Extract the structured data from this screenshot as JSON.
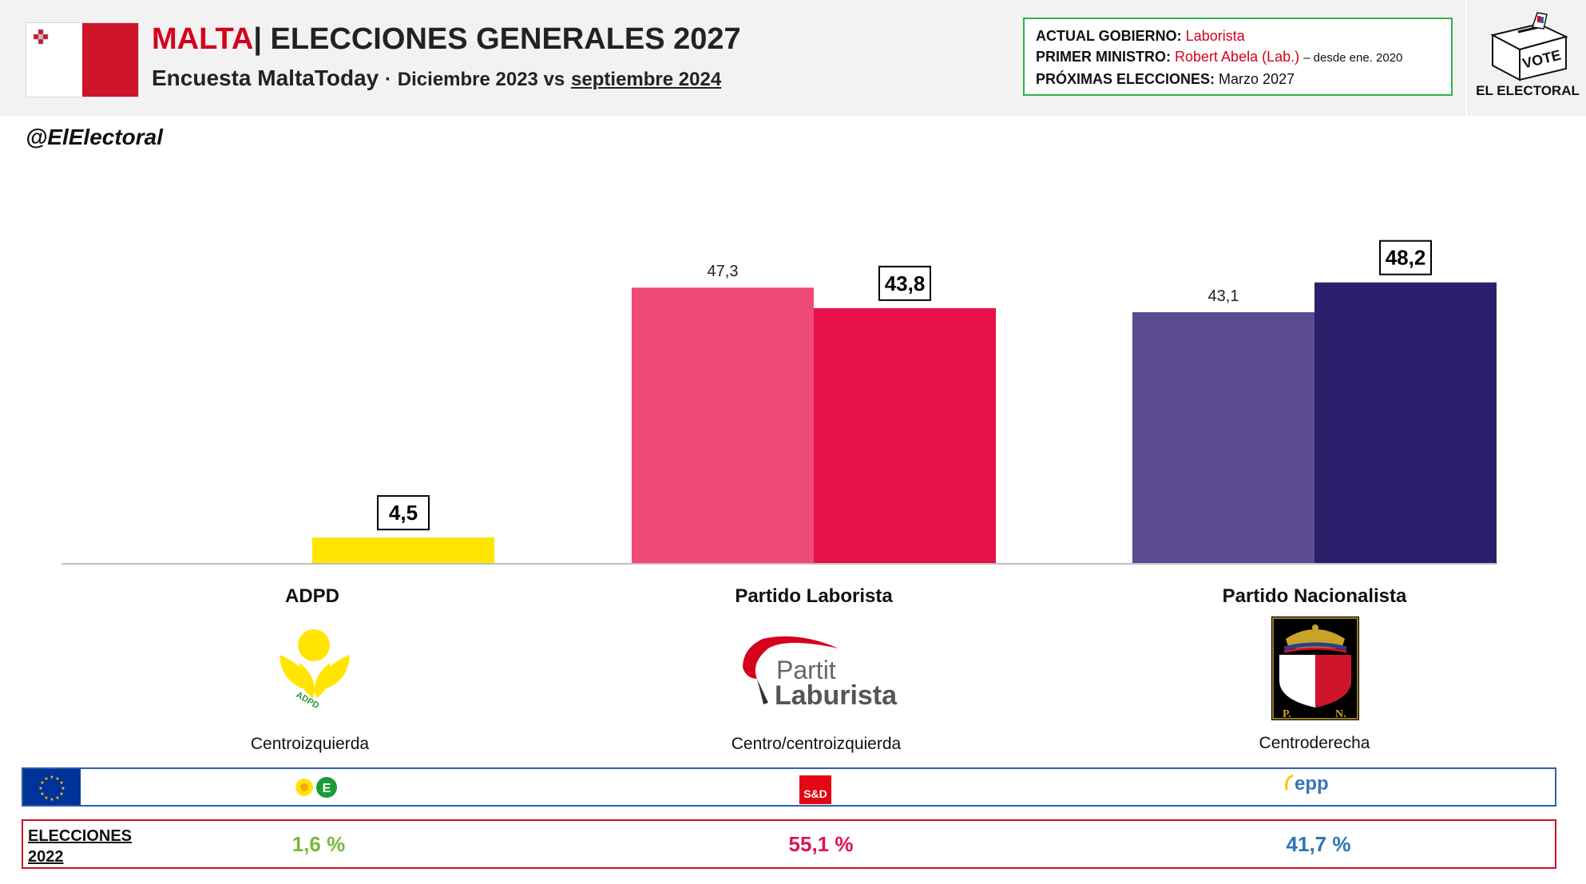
{
  "header": {
    "country": "MALTA",
    "title": "| ELECCIONES GENERALES 2027",
    "subtitle_main": "Encuesta MaltaToday",
    "subtitle_sep": "·",
    "subtitle_date1": "Diciembre 2023 vs",
    "subtitle_date2": "septiembre 2024"
  },
  "info_box": {
    "gov_label": "ACTUAL GOBIERNO:",
    "gov_value": "Laborista",
    "pm_label": "PRIMER MINISTRO:",
    "pm_value": "Robert Abela (Lab.)",
    "pm_since": "– desde ene. 2020",
    "next_label": "PRÓXIMAS ELECCIONES:",
    "next_value": "Marzo 2027"
  },
  "logo": {
    "vote": "VOTE",
    "name": "EL ELECTORAL"
  },
  "handle": "@ElElectoral",
  "colors": {
    "adpd": "#ffe500",
    "pl_prev": "#ef4b76",
    "pl_curr": "#e8104a",
    "pn_prev": "#5b4c8f",
    "pn_curr": "#2a1f6b"
  },
  "chart_data": {
    "type": "bar",
    "categories": [
      "ADPD",
      "Partido Laborista",
      "Partido Nacionalista"
    ],
    "series": [
      {
        "name": "Diciembre 2023",
        "values": [
          null,
          47.3,
          43.1
        ]
      },
      {
        "name": "septiembre 2024",
        "values": [
          4.5,
          43.8,
          48.2
        ]
      }
    ],
    "labels_prev": [
      "",
      "47,3",
      "43,1"
    ],
    "labels_curr": [
      "4,5",
      "43,8",
      "48,2"
    ],
    "ylim": [
      0,
      50
    ]
  },
  "parties": [
    {
      "name": "ADPD",
      "ideology": "Centroizquierda",
      "logo_text": "ADPD"
    },
    {
      "name": "Partido Laborista",
      "ideology": "Centro/centroizquierda",
      "logo_text1": "Partit",
      "logo_text2": "Laburista"
    },
    {
      "name": "Partido Nacionalista",
      "ideology": "Centroderecha",
      "logo_text1": "P.",
      "logo_text2": "N."
    }
  ],
  "eu_groups": [
    {
      "text": "E",
      "color": "#1a9b3a"
    },
    {
      "text": "S&D",
      "color": "#e30613"
    },
    {
      "text": "epp",
      "color": "#3a73b8"
    }
  ],
  "elections_2022": {
    "label_line1": "ELECCIONES",
    "label_line2": "2022",
    "values": [
      "1,6 %",
      "55,1 %",
      "41,7 %"
    ],
    "colors": [
      "#78b83c",
      "#e0105a",
      "#2e75b6"
    ]
  }
}
